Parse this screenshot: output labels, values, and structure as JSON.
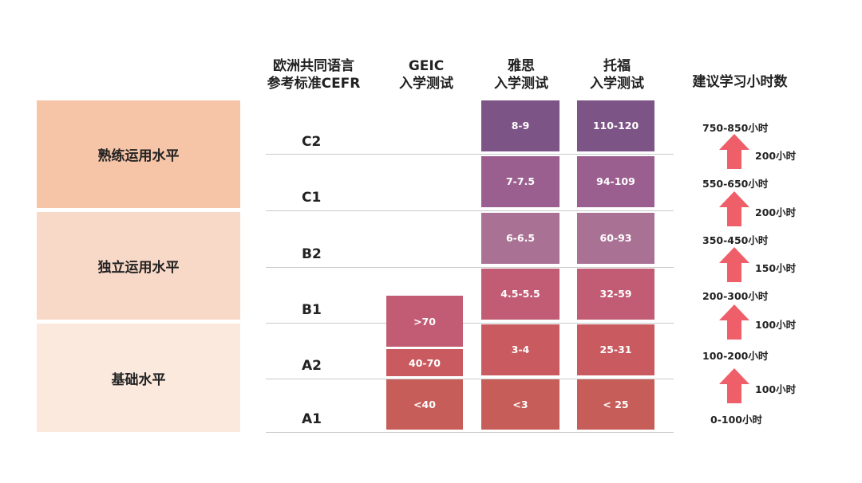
{
  "headers": {
    "cefr": "欧洲共同语言\n参考标准CEFR",
    "geic": "GEIC\n入学测试",
    "ielts": "雅思\n入学测试",
    "toefl": "托福\n入学测试",
    "hours": "建议学习小时数"
  },
  "level_groups": [
    {
      "label": "熟练运用水平",
      "color": "#f6c4a7"
    },
    {
      "label": "独立运用水平",
      "color": "#f8d8c6"
    },
    {
      "label": "基础水平",
      "color": "#fce9de"
    }
  ],
  "cefr_levels": [
    "C2",
    "C1",
    "B2",
    "B1",
    "A2",
    "A1"
  ],
  "geic_scores": [
    ">70",
    "40-70",
    "<40"
  ],
  "ielts_scores": [
    "8-9",
    "7-7.5",
    "6-6.5",
    "4.5-5.5",
    "3-4",
    "<3"
  ],
  "toefl_scores": [
    "110-120",
    "94-109",
    "60-93",
    "32-59",
    "25-31",
    "< 25"
  ],
  "cell_colors": {
    "c2": "#7d5486",
    "c1": "#9a5f8f",
    "b2": "#a97294",
    "b1": "#c15c74",
    "a2": "#c95b60",
    "a1": "#c75d58"
  },
  "arrow_color": "#ef5f6a",
  "hour_marks": [
    "750-850小时",
    "550-650小时",
    "350-450小时",
    "200-300小时",
    "100-200小时",
    "0-100小时"
  ],
  "hour_increments": [
    "200小时",
    "200小时",
    "150小时",
    "100小时",
    "100小时"
  ]
}
